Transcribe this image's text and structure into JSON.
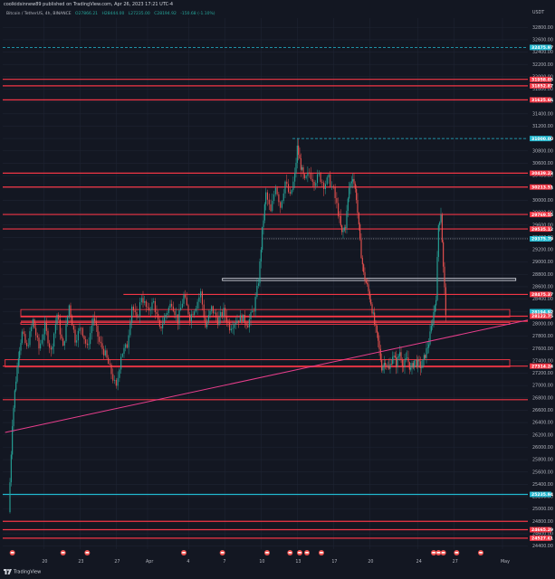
{
  "header": {
    "publisher": "coolkidsinnew89 published on TradingView.com, Apr 26, 2023 17:21 UTC-4",
    "symbol": "Bitcoin / TetherUS, 4h, BINANCE",
    "open": "O27866.21",
    "high": "H28444.00",
    "low": "L27235.00",
    "close": "C28194.92",
    "change": "-150.68 (-1.10%)"
  },
  "currency": "USDT",
  "footer": {
    "brand": "TradingView"
  },
  "colors": {
    "background": "#131722",
    "up": "#26a69a",
    "down": "#ef5350",
    "red_level": "#f23645",
    "cyan_level": "#22b8cf",
    "trendline": "#e83e8c"
  },
  "chart_data": {
    "type": "candlestick",
    "yticks": [
      32800,
      32600,
      32400,
      32200,
      32000,
      31800,
      31600,
      31400,
      31200,
      31000,
      30800,
      30600,
      30400,
      30200,
      30000,
      29800,
      29600,
      29400,
      29200,
      29000,
      28800,
      28600,
      28400,
      28200,
      28000,
      27800,
      27600,
      27400,
      27200,
      27000,
      26800,
      26600,
      26400,
      26200,
      26000,
      25800,
      25600,
      25400,
      25200,
      25000,
      24800,
      24600,
      24400
    ],
    "ylim": [
      24350,
      32950
    ],
    "xticks": [
      "20",
      "23",
      "27",
      "Apr",
      "4",
      "7",
      "10",
      "13",
      "17",
      "20",
      "24",
      "27",
      "May"
    ],
    "xtick_values": [
      6.4,
      9.4,
      12.4,
      15,
      18.4,
      21.4,
      24.4,
      27.4,
      30.4,
      33.4,
      37.4,
      40.4,
      44.4
    ],
    "xlim": [
      3,
      46.5
    ],
    "price_labels": [
      {
        "text": "32475.97",
        "value": 32475.97,
        "color": "#22b8cf"
      },
      {
        "text": "31958.05",
        "value": 31958.05,
        "color": "#f23645"
      },
      {
        "text": "31852.87",
        "value": 31852.87,
        "color": "#f23645"
      },
      {
        "text": "31625.66",
        "value": 31625.66,
        "color": "#f23645"
      },
      {
        "text": "31000.00",
        "value": 31000,
        "color": "#22b8cf"
      },
      {
        "text": "30439.23",
        "value": 30439.23,
        "color": "#f23645"
      },
      {
        "text": "30213.51",
        "value": 30213.51,
        "color": "#f23645"
      },
      {
        "text": "29769.55",
        "value": 29769.55,
        "color": "#f23645"
      },
      {
        "text": "29535.12",
        "value": 29535.12,
        "color": "#f23645"
      },
      {
        "text": "29375.79",
        "value": 29375.79,
        "color": "#22b8cf"
      },
      {
        "text": "28475.37",
        "value": 28475.37,
        "color": "#f23645"
      },
      {
        "text": "28194.92",
        "value": 28194.92,
        "color": "#22b8cf"
      },
      {
        "text": "28122.75",
        "value": 28122.75,
        "color": "#f23645"
      },
      {
        "text": "27314.24",
        "value": 27314.24,
        "color": "#f23645"
      },
      {
        "text": "25235.94",
        "value": 25235.94,
        "color": "#22b8cf"
      },
      {
        "text": "24665.29",
        "value": 24665.29,
        "color": "#f23645"
      },
      {
        "text": "24527.61",
        "value": 24527.61,
        "color": "#f23645"
      }
    ],
    "levels": [
      {
        "value": 32475.97,
        "color": "#22b8cf",
        "style": "dashed",
        "from": 0
      },
      {
        "value": 31958.05,
        "color": "#f23645",
        "style": "solid",
        "from": 0
      },
      {
        "value": 31852.87,
        "color": "#f23645",
        "style": "solid",
        "from": 0
      },
      {
        "value": 31625.66,
        "color": "#f23645",
        "style": "solid",
        "from": 0
      },
      {
        "value": 31000,
        "color": "#22b8cf",
        "style": "dashed",
        "from": 27
      },
      {
        "value": 30439.23,
        "color": "#f23645",
        "style": "solid",
        "from": 0
      },
      {
        "value": 30213.51,
        "color": "#f23645",
        "style": "solid",
        "from": 0
      },
      {
        "value": 29769.55,
        "color": "#f23645",
        "style": "solid",
        "from": 0
      },
      {
        "value": 29535.12,
        "color": "#f23645",
        "style": "solid",
        "from": 0
      },
      {
        "value": 29375.79,
        "color": "#9598a1",
        "style": "dotted",
        "from": 24.5
      },
      {
        "value": 28475.37,
        "color": "#f23645",
        "style": "solid",
        "from": 13
      },
      {
        "value": 28122.75,
        "color": "#f23645",
        "style": "solid",
        "from": 4.5
      },
      {
        "value": 28040,
        "color": "#f23645",
        "style": "solid",
        "from": 4.5
      },
      {
        "value": 27314.24,
        "color": "#f23645",
        "style": "solid",
        "from": 0
      },
      {
        "value": 26770,
        "color": "#f23645",
        "style": "solid",
        "from": 0
      },
      {
        "value": 25235.94,
        "color": "#22b8cf",
        "style": "solid",
        "from": 0
      },
      {
        "value": 24665.29,
        "color": "#f23645",
        "style": "solid",
        "from": 0
      },
      {
        "value": 24527.61,
        "color": "#f23645",
        "style": "solid",
        "from": 0
      },
      {
        "value": 24800,
        "color": "#f23645",
        "style": "solid",
        "from": 0
      }
    ],
    "zones": [
      {
        "top": 28230,
        "bottom": 28110,
        "from": 4.5,
        "to": 45,
        "color": "#f23645"
      },
      {
        "top": 28020,
        "bottom": 27990,
        "from": 4.5,
        "to": 45,
        "color": "#f23645"
      },
      {
        "top": 27420,
        "bottom": 27300,
        "from": 3.2,
        "to": 45,
        "color": "#f23645"
      },
      {
        "top": 28735,
        "bottom": 28700,
        "from": 21.2,
        "to": 45.5,
        "color": "#d1d4dc"
      }
    ],
    "trendline": {
      "x1": 3.2,
      "y1": 26240,
      "x2": 46.5,
      "y2": 28060,
      "color": "#e83e8c"
    },
    "close_series": [
      [
        3.5,
        24950
      ],
      [
        3.8,
        26400
      ],
      [
        4.0,
        26900
      ],
      [
        4.3,
        27500
      ],
      [
        4.6,
        27850
      ],
      [
        5.0,
        27600
      ],
      [
        5.5,
        28050
      ],
      [
        6.0,
        27600
      ],
      [
        6.5,
        27950
      ],
      [
        7.0,
        27550
      ],
      [
        7.5,
        28150
      ],
      [
        8.0,
        27600
      ],
      [
        8.5,
        28300
      ],
      [
        9.0,
        27750
      ],
      [
        9.5,
        27950
      ],
      [
        10.0,
        27600
      ],
      [
        10.5,
        28100
      ],
      [
        11.0,
        27700
      ],
      [
        11.5,
        27500
      ],
      [
        12.0,
        27200
      ],
      [
        12.4,
        26950
      ],
      [
        12.8,
        27500
      ],
      [
        13.3,
        27650
      ],
      [
        13.7,
        28300
      ],
      [
        14.1,
        28050
      ],
      [
        14.5,
        28450
      ],
      [
        15.0,
        28200
      ],
      [
        15.5,
        28350
      ],
      [
        16.0,
        27900
      ],
      [
        16.5,
        28150
      ],
      [
        17.0,
        28350
      ],
      [
        17.5,
        28050
      ],
      [
        18.0,
        28450
      ],
      [
        18.5,
        28100
      ],
      [
        19.0,
        28300
      ],
      [
        19.4,
        28500
      ],
      [
        19.8,
        27950
      ],
      [
        20.3,
        28250
      ],
      [
        20.8,
        28050
      ],
      [
        21.3,
        28200
      ],
      [
        21.8,
        27950
      ],
      [
        22.3,
        28050
      ],
      [
        22.8,
        28100
      ],
      [
        23.3,
        28000
      ],
      [
        23.8,
        28250
      ],
      [
        24.2,
        28700
      ],
      [
        24.5,
        29500
      ],
      [
        24.8,
        30100
      ],
      [
        25.2,
        29800
      ],
      [
        25.6,
        30250
      ],
      [
        26.0,
        29900
      ],
      [
        26.4,
        30300
      ],
      [
        26.8,
        30050
      ],
      [
        27.2,
        30400
      ],
      [
        27.4,
        30850
      ],
      [
        27.7,
        30550
      ],
      [
        28.0,
        30300
      ],
      [
        28.4,
        30450
      ],
      [
        28.8,
        30300
      ],
      [
        29.2,
        30400
      ],
      [
        29.6,
        30250
      ],
      [
        30.0,
        30350
      ],
      [
        30.4,
        30150
      ],
      [
        30.8,
        29800
      ],
      [
        31.1,
        29450
      ],
      [
        31.4,
        29600
      ],
      [
        31.7,
        30200
      ],
      [
        32.0,
        30400
      ],
      [
        32.3,
        30050
      ],
      [
        32.6,
        29300
      ],
      [
        32.9,
        28800
      ],
      [
        33.2,
        28600
      ],
      [
        33.5,
        28350
      ],
      [
        33.8,
        28000
      ],
      [
        34.1,
        27700
      ],
      [
        34.4,
        27300
      ],
      [
        34.7,
        27400
      ],
      [
        35.0,
        27250
      ],
      [
        35.3,
        27500
      ],
      [
        35.6,
        27350
      ],
      [
        35.9,
        27550
      ],
      [
        36.2,
        27300
      ],
      [
        36.5,
        27450
      ],
      [
        36.8,
        27250
      ],
      [
        37.1,
        27400
      ],
      [
        37.4,
        27350
      ],
      [
        37.7,
        27300
      ],
      [
        38.0,
        27500
      ],
      [
        38.3,
        27700
      ],
      [
        38.6,
        28050
      ],
      [
        38.9,
        28450
      ],
      [
        39.1,
        29600
      ],
      [
        39.3,
        29800
      ],
      [
        39.5,
        28900
      ],
      [
        39.7,
        28195
      ]
    ]
  }
}
